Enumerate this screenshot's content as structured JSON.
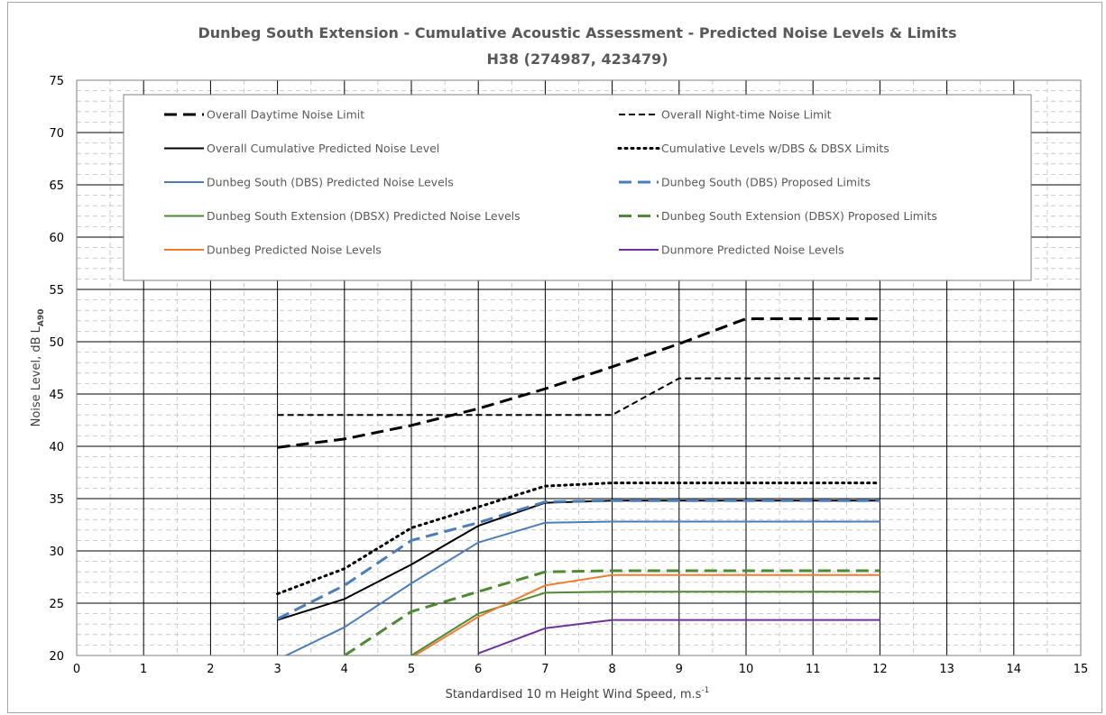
{
  "chart_data": {
    "type": "line",
    "title": "Dunbeg South Extension - Cumulative Acoustic Assessment - Predicted Noise Levels & Limits",
    "subtitle": "H38 (274987, 423479)",
    "xlabel": "Standardised 10 m Height Wind Speed, m.s",
    "xlabel_sup": "-1",
    "ylabel": "Noise Level, dB L",
    "ylabel_sub": "A90",
    "xlim": [
      0,
      15
    ],
    "ylim": [
      20,
      75
    ],
    "xticks": [
      "0",
      "1",
      "2",
      "3",
      "4",
      "5",
      "6",
      "7",
      "8",
      "9",
      "10",
      "11",
      "12",
      "13",
      "14",
      "15"
    ],
    "yticks": [
      "20",
      "25",
      "30",
      "35",
      "40",
      "45",
      "50",
      "55",
      "60",
      "65",
      "70",
      "75"
    ],
    "grid": true,
    "legend_position": "top",
    "x": [
      3,
      4,
      5,
      6,
      7,
      8,
      9,
      10,
      11,
      12
    ],
    "series": [
      {
        "name": "Overall Daytime Noise Limit",
        "color": "#000000",
        "style": "longdash",
        "width": 3,
        "values": [
          39.9,
          40.7,
          42.0,
          43.6,
          45.5,
          47.6,
          49.8,
          52.2,
          52.2,
          52.2
        ]
      },
      {
        "name": "Overall Night-time Noise Limit",
        "color": "#000000",
        "style": "dash",
        "width": 2,
        "values": [
          43.0,
          43.0,
          43.0,
          43.0,
          43.0,
          43.0,
          46.5,
          46.5,
          46.5,
          46.5
        ]
      },
      {
        "name": "Overall Cumulative Predicted Noise Level",
        "color": "#000000",
        "style": "solid",
        "width": 2,
        "values": [
          23.4,
          25.4,
          28.7,
          32.4,
          34.6,
          34.8,
          34.8,
          34.8,
          34.8,
          34.8
        ]
      },
      {
        "name": "Cumulative Levels w/DBS & DBSX Limits",
        "color": "#000000",
        "style": "dot",
        "width": 3,
        "values": [
          25.9,
          28.3,
          32.2,
          34.2,
          36.2,
          36.5,
          36.5,
          36.5,
          36.5,
          36.5
        ]
      },
      {
        "name": "Dunbeg South (DBS) Predicted Noise Levels",
        "color": "#4a7ebb",
        "style": "solid",
        "width": 2,
        "values": [
          19.6,
          22.7,
          26.9,
          30.8,
          32.7,
          32.8,
          32.8,
          32.8,
          32.8,
          32.8
        ]
      },
      {
        "name": "Dunbeg South (DBS) Proposed Limits",
        "color": "#4a7ebb",
        "style": "longdash",
        "width": 3,
        "values": [
          23.5,
          26.7,
          31.0,
          32.7,
          34.7,
          34.8,
          34.8,
          34.8,
          34.8,
          34.8
        ]
      },
      {
        "name": "Dunbeg South Extension (DBSX) Predicted Noise Levels",
        "color": "#4e8a31",
        "style": "solid",
        "width": 2,
        "values": [
          null,
          null,
          20.0,
          24.0,
          26.0,
          26.1,
          26.1,
          26.1,
          26.1,
          26.1
        ]
      },
      {
        "name": "Dunbeg South Extension (DBSX) Proposed Limits",
        "color": "#4e8a31",
        "style": "longdash",
        "width": 3,
        "values": [
          null,
          20.0,
          24.2,
          26.1,
          28.0,
          28.1,
          28.1,
          28.1,
          28.1,
          28.1
        ]
      },
      {
        "name": "Dunbeg Predicted Noise Levels",
        "color": "#ed7d31",
        "style": "solid",
        "width": 2,
        "values": [
          null,
          null,
          19.8,
          23.7,
          26.7,
          27.7,
          27.7,
          27.7,
          27.7,
          27.7
        ]
      },
      {
        "name": "Dunmore Predicted Noise Levels",
        "color": "#7030a0",
        "style": "solid",
        "width": 2,
        "values": [
          null,
          null,
          null,
          20.2,
          22.6,
          23.4,
          23.4,
          23.4,
          23.4,
          23.4
        ]
      }
    ]
  }
}
